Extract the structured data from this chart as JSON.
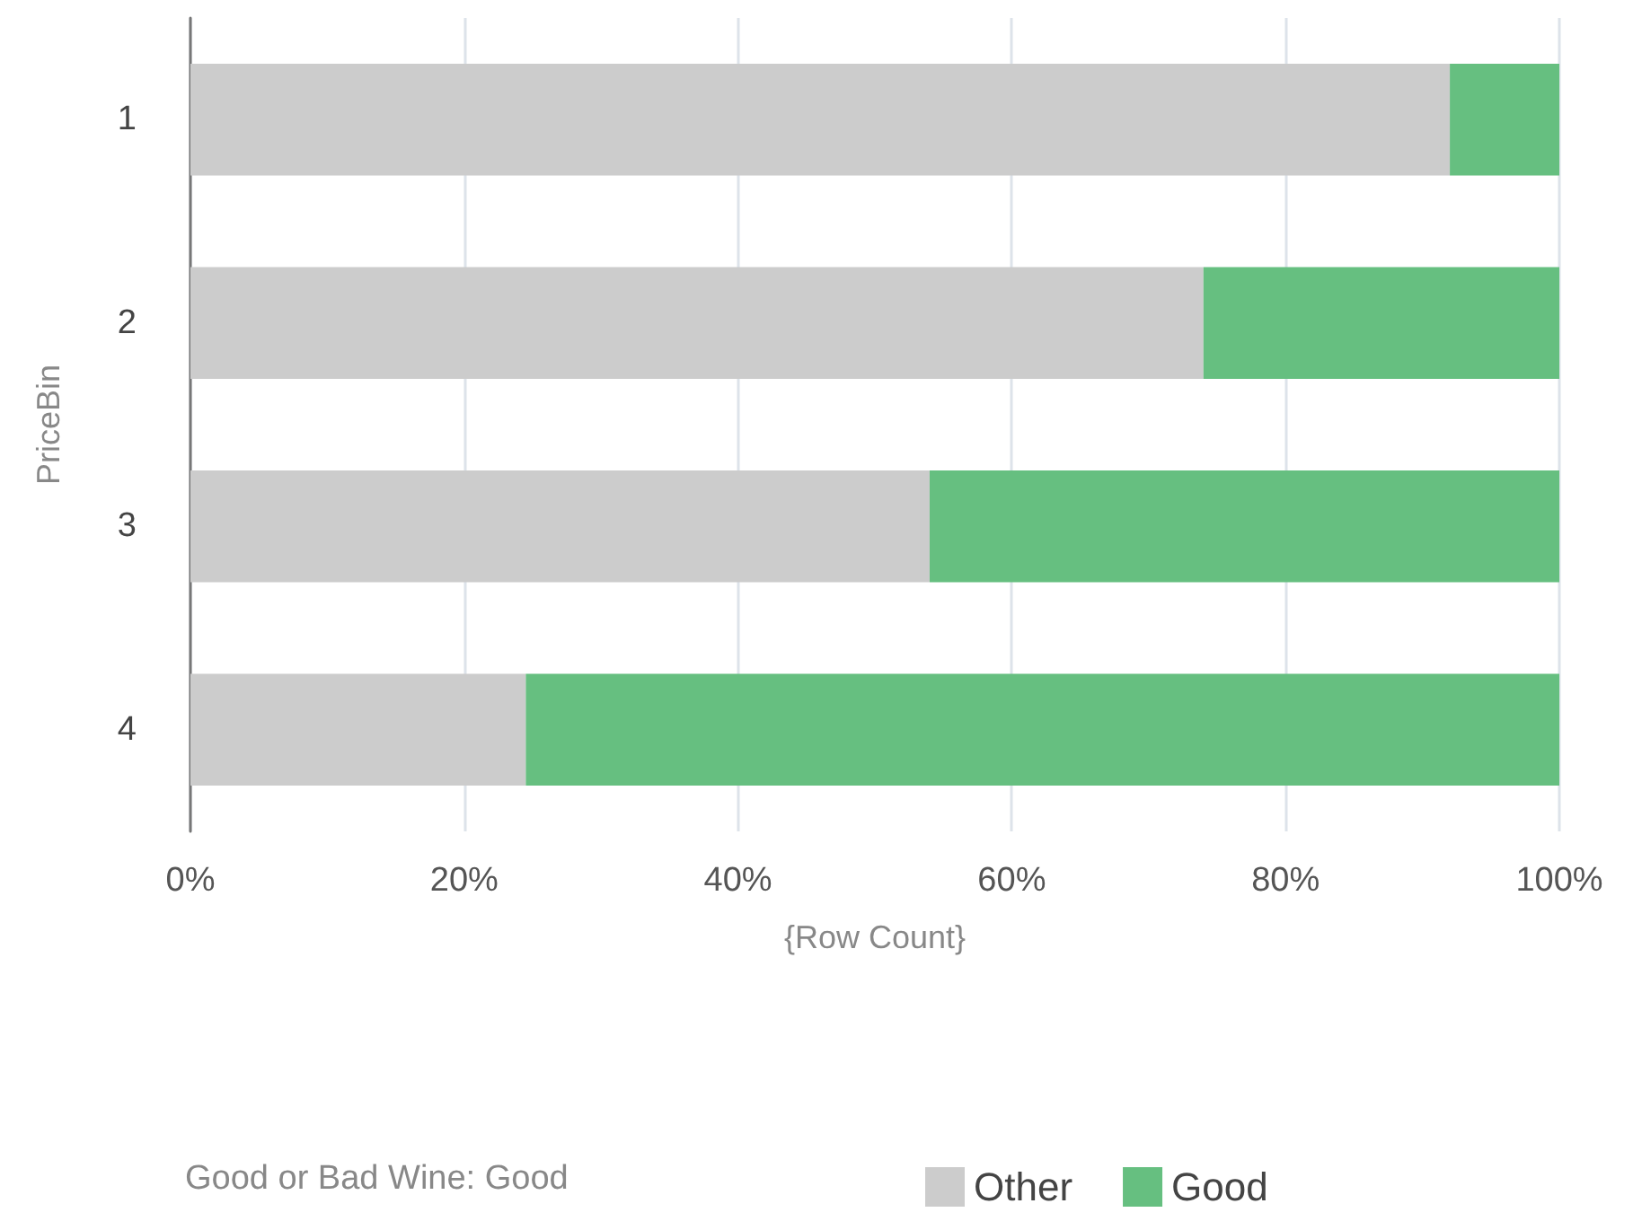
{
  "chart_data": {
    "type": "bar",
    "orientation": "horizontal",
    "stacked": true,
    "categories": [
      "1",
      "2",
      "3",
      "4"
    ],
    "series": [
      {
        "name": "Other",
        "color": "#cccccc",
        "values": [
          92,
          74,
          54,
          24.5
        ]
      },
      {
        "name": "Good",
        "color": "#66bf80",
        "values": [
          8,
          26,
          46,
          75.5
        ]
      }
    ],
    "xlabel": "{Row Count}",
    "ylabel": "PriceBin",
    "legend_title": "Good or Bad Wine: Good",
    "xlim": [
      0,
      100
    ],
    "xticks": [
      {
        "value": 0,
        "label": "0%"
      },
      {
        "value": 20,
        "label": "20%"
      },
      {
        "value": 40,
        "label": "40%"
      },
      {
        "value": 60,
        "label": "60%"
      },
      {
        "value": 80,
        "label": "80%"
      },
      {
        "value": 100,
        "label": "100%"
      }
    ],
    "grid": "x",
    "legend": "bottom"
  }
}
